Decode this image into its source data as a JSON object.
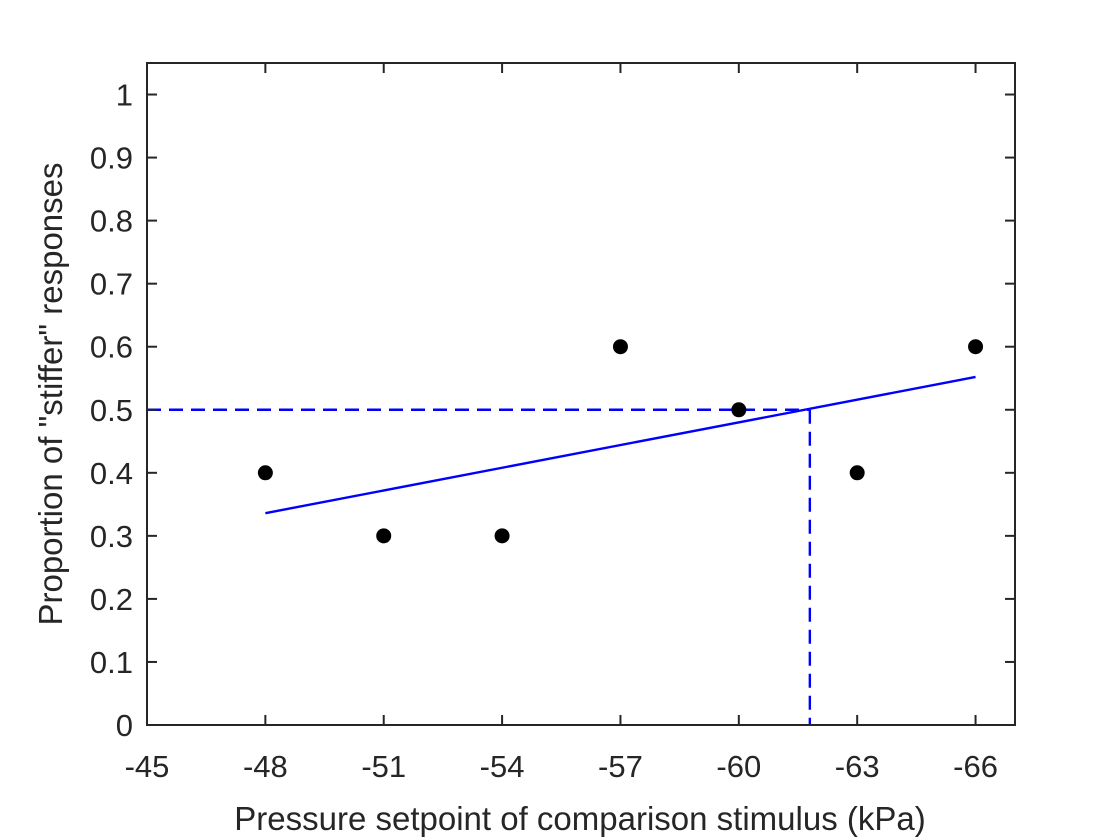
{
  "chart_data": {
    "type": "scatter",
    "title": "",
    "xlabel": "Pressure setpoint of comparison stimulus (kPa)",
    "ylabel": "Proportion of \"stiffer\" responses",
    "xlim": [
      -45,
      -67
    ],
    "ylim": [
      0,
      1.05
    ],
    "x_reversed": true,
    "xticks": [
      -45,
      -48,
      -51,
      -54,
      -57,
      -60,
      -63,
      -66
    ],
    "yticks": [
      0,
      0.1,
      0.2,
      0.3,
      0.4,
      0.5,
      0.6,
      0.7,
      0.8,
      0.9,
      1
    ],
    "xtick_labels": [
      "-45",
      "-48",
      "-51",
      "-54",
      "-57",
      "-60",
      "-63",
      "-66"
    ],
    "ytick_labels": [
      "0",
      "0.1",
      "0.2",
      "0.3",
      "0.4",
      "0.5",
      "0.6",
      "0.7",
      "0.8",
      "0.9",
      "1"
    ],
    "grid": false,
    "box": true,
    "series": [
      {
        "kind": "points",
        "color": "#000000",
        "x": [
          -48,
          -51,
          -54,
          -57,
          -60,
          -63,
          -66
        ],
        "y": [
          0.4,
          0.3,
          0.3,
          0.6,
          0.5,
          0.4,
          0.6
        ]
      },
      {
        "kind": "fit-line",
        "color": "#0000ff",
        "x": [
          -48,
          -66
        ],
        "y": [
          0.336,
          0.552
        ]
      }
    ],
    "threshold": {
      "color": "#0000ff",
      "style": "dashed",
      "y": 0.5,
      "x": -61.8
    }
  }
}
